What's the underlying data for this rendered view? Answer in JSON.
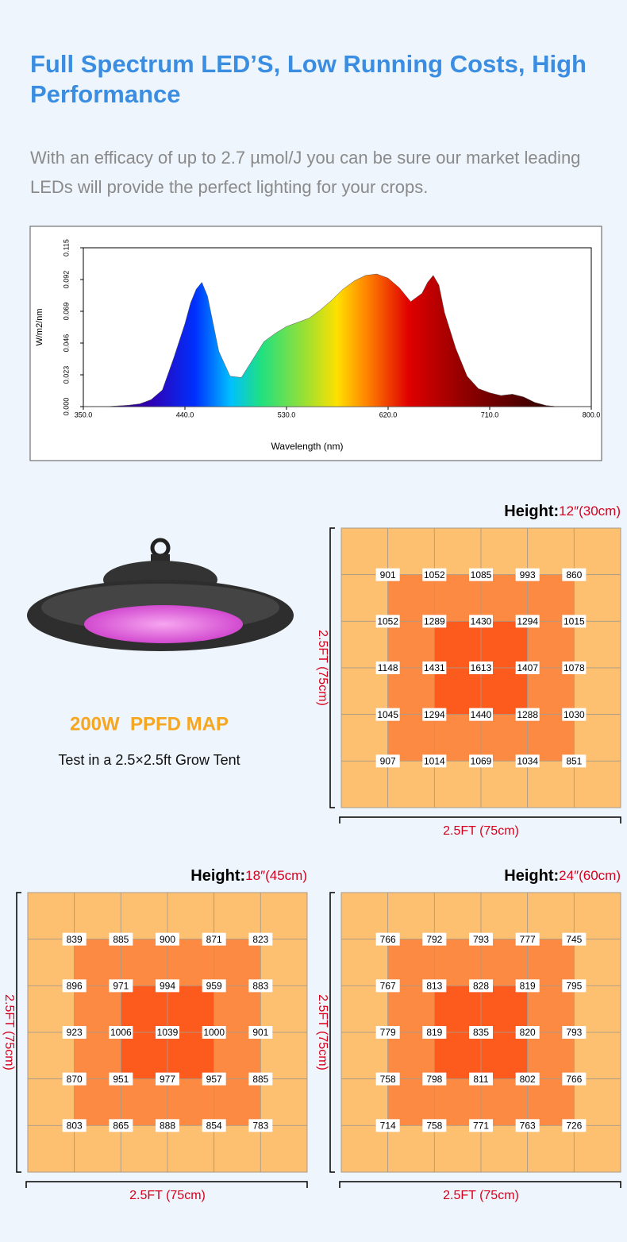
{
  "header": {
    "title": "Full Spectrum LED’S, Low Running Costs, High Performance",
    "subtitle": "With an efficacy of up to 2.7 µmol/J you can be sure our market leading LEDs will provide the perfect lighting for your crops."
  },
  "chart_data": {
    "type": "area",
    "ylabel": "W/m2/nm",
    "xlabel": "Wavelength (nm)",
    "x": [
      350,
      360,
      370,
      380,
      390,
      400,
      410,
      420,
      430,
      440,
      445,
      450,
      455,
      460,
      465,
      470,
      480,
      490,
      500,
      510,
      520,
      530,
      540,
      550,
      560,
      570,
      580,
      590,
      600,
      610,
      620,
      630,
      640,
      650,
      655,
      660,
      665,
      670,
      680,
      690,
      700,
      710,
      720,
      730,
      740,
      750,
      760,
      770,
      800
    ],
    "values": [
      0,
      0,
      0,
      0.0005,
      0.001,
      0.002,
      0.005,
      0.012,
      0.035,
      0.06,
      0.075,
      0.085,
      0.09,
      0.08,
      0.06,
      0.04,
      0.022,
      0.021,
      0.034,
      0.047,
      0.053,
      0.058,
      0.061,
      0.064,
      0.07,
      0.077,
      0.085,
      0.091,
      0.095,
      0.096,
      0.093,
      0.086,
      0.076,
      0.082,
      0.09,
      0.095,
      0.088,
      0.068,
      0.042,
      0.022,
      0.013,
      0.01,
      0.008,
      0.009,
      0.007,
      0.003,
      0.0008,
      0,
      0
    ],
    "xlim": [
      350,
      800
    ],
    "ylim": [
      0,
      0.115
    ],
    "xticks": [
      {
        "value": 350,
        "label": "350.0"
      },
      {
        "value": 440,
        "label": "440.0"
      },
      {
        "value": 530,
        "label": "530.0"
      },
      {
        "value": 620,
        "label": "620.0"
      },
      {
        "value": 710,
        "label": "710.0"
      },
      {
        "value": 800,
        "label": "800.0"
      }
    ],
    "yticks": [
      {
        "value": 0,
        "label": "0.000"
      },
      0.023,
      0.046,
      0.069,
      0.092,
      0.115
    ]
  },
  "product": {
    "title": "200W  PPFD MAP",
    "caption": "Test in a 2.5×2.5ft Grow Tent"
  },
  "maps": [
    {
      "height_label": "Height:",
      "height": "12″(30cm)",
      "x_label": "2.5FT (75cm)",
      "y_label": "2.5FT (75cm)",
      "rows": [
        [
          901,
          1052,
          1085,
          993,
          860
        ],
        [
          1052,
          1289,
          1430,
          1294,
          1015
        ],
        [
          1148,
          1431,
          1613,
          1407,
          1078
        ],
        [
          1045,
          1294,
          1440,
          1288,
          1030
        ],
        [
          907,
          1014,
          1069,
          1034,
          851
        ]
      ]
    },
    {
      "height_label": "Height:",
      "height": "18″(45cm)",
      "x_label": "2.5FT (75cm)",
      "y_label": "2.5FT (75cm)",
      "rows": [
        [
          839,
          885,
          900,
          871,
          823
        ],
        [
          896,
          971,
          994,
          959,
          883
        ],
        [
          923,
          1006,
          1039,
          1000,
          901
        ],
        [
          870,
          951,
          977,
          957,
          885
        ],
        [
          803,
          865,
          888,
          854,
          783
        ]
      ]
    },
    {
      "height_label": "Height:",
      "height": "24″(60cm)",
      "x_label": "2.5FT (75cm)",
      "y_label": "2.5FT (75cm)",
      "rows": [
        [
          766,
          792,
          793,
          777,
          745
        ],
        [
          767,
          813,
          828,
          819,
          795
        ],
        [
          779,
          819,
          835,
          820,
          793
        ],
        [
          758,
          798,
          811,
          802,
          766
        ],
        [
          714,
          758,
          771,
          763,
          726
        ]
      ]
    }
  ]
}
